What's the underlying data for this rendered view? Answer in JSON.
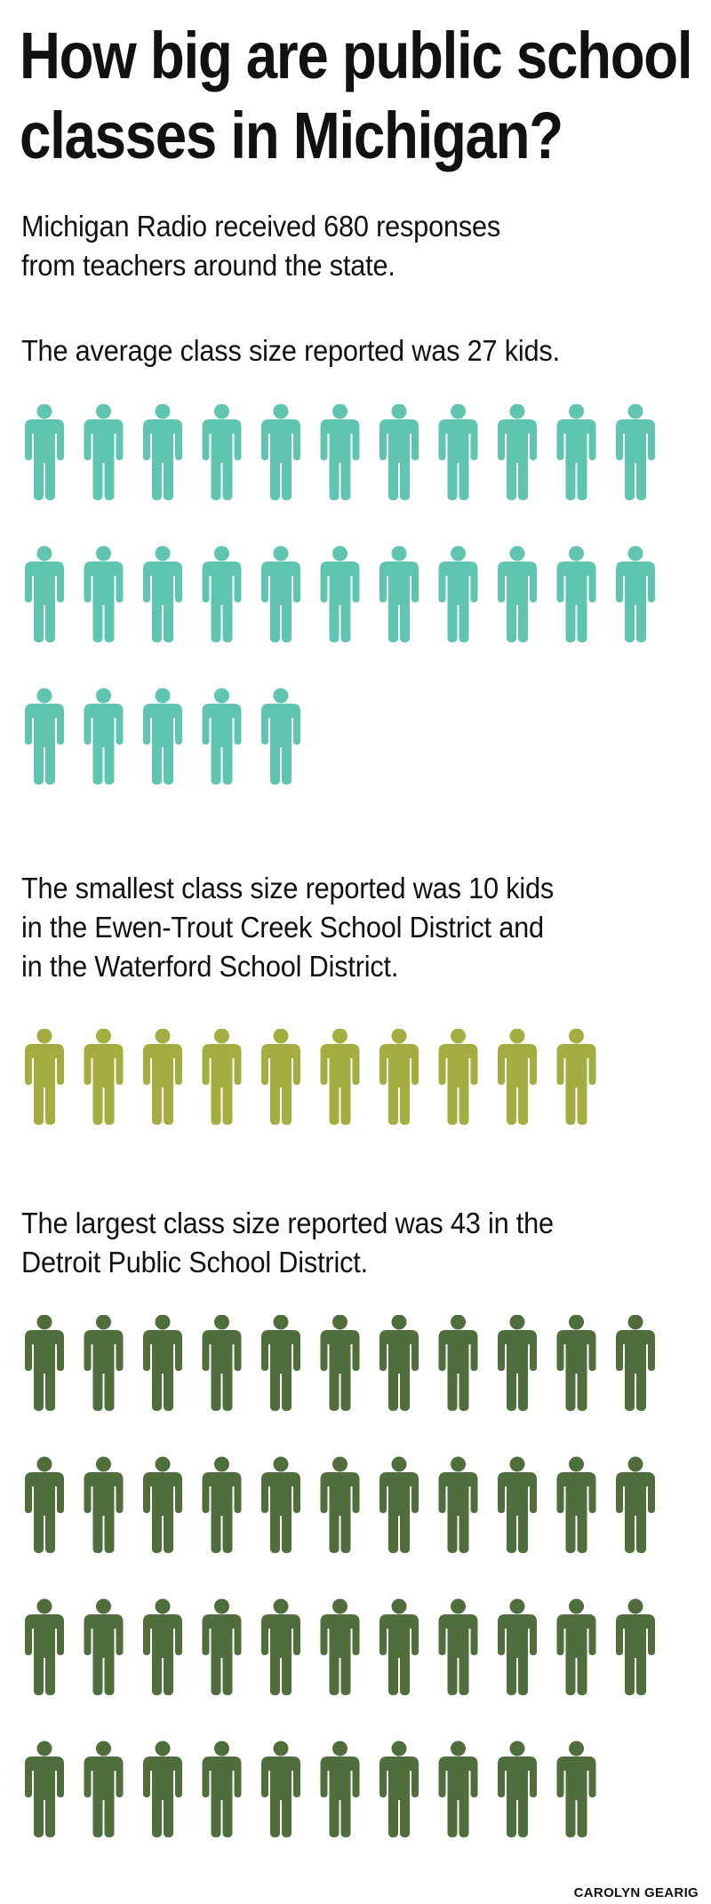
{
  "title": {
    "line1": "How big are public school",
    "line2": "classes in Michigan?"
  },
  "intro": {
    "line1": "Michigan Radio received 680 responses",
    "line2": "from teachers around the state."
  },
  "average": {
    "text": "The average class size reported was 27 kids.",
    "count": 27,
    "color": "#5fc4b0"
  },
  "smallest": {
    "line1": "The smallest class size reported was 10 kids",
    "line2": "in the Ewen-Trout Creek School District and",
    "line3": "in the Waterford School District.",
    "count": 10,
    "color": "#a4ad3f"
  },
  "largest": {
    "line1": "The largest class size reported was 43 in the",
    "line2": "Detroit Public School District.",
    "count": 43,
    "color": "#4f6e3c"
  },
  "credit": "CAROLYN GEARIG",
  "chart_data": [
    {
      "type": "pictogram",
      "unit": "kids",
      "values": [
        27
      ],
      "color": "#5fc4b0"
    },
    {
      "type": "pictogram",
      "unit": "kids",
      "values": [
        10
      ],
      "color": "#a4ad3f"
    },
    {
      "type": "pictogram",
      "unit": "kids",
      "values": [
        43
      ],
      "color": "#4f6e3c"
    }
  ]
}
